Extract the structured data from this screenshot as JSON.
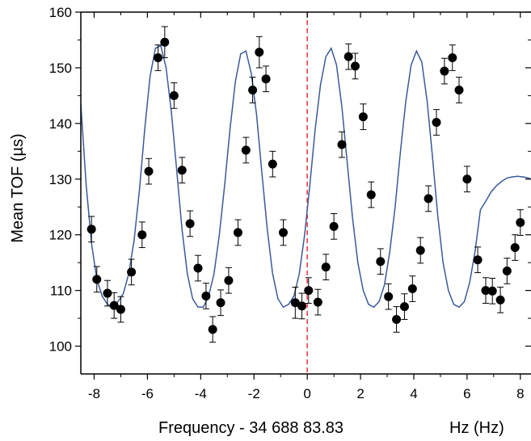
{
  "chart_data": {
    "type": "scatter",
    "title": "",
    "xlabel": "Frequency - 34 688 83.83",
    "xlabel_unit": "Hz (Hz)",
    "ylabel": "Mean TOF (µs)",
    "xlim": [
      -8.5,
      8.4
    ],
    "ylim": [
      95,
      160
    ],
    "xticks": [
      -8,
      -6,
      -4,
      -2,
      0,
      2,
      4,
      6,
      8
    ],
    "yticks": [
      100,
      110,
      120,
      130,
      140,
      150,
      160
    ],
    "xtick_labels": [
      "-8",
      "-6",
      "-4",
      "-2",
      "0",
      "2",
      "4",
      "6",
      "8"
    ],
    "ytick_labels": [
      "100",
      "110",
      "120",
      "130",
      "140",
      "150",
      "160"
    ],
    "reference_line_x": 0,
    "colors": {
      "points": "#000000",
      "fit": "#3a5a9a",
      "reference": "#e8303a"
    },
    "series": [
      {
        "kind": "points_with_error_bars",
        "x": [
          -8.1,
          -7.9,
          -7.5,
          -7.25,
          -7.0,
          -6.6,
          -6.2,
          -5.95,
          -5.6,
          -5.35,
          -5.0,
          -4.7,
          -4.4,
          -4.1,
          -3.8,
          -3.55,
          -3.25,
          -2.95,
          -2.6,
          -2.3,
          -2.05,
          -1.8,
          -1.55,
          -1.3,
          -0.9,
          -0.45,
          -0.2,
          0.05,
          0.4,
          0.7,
          1.0,
          1.3,
          1.55,
          1.8,
          2.1,
          2.4,
          2.75,
          3.05,
          3.35,
          3.65,
          3.95,
          4.25,
          4.55,
          4.85,
          5.15,
          5.45,
          5.7,
          6.0,
          6.4,
          6.7,
          6.95,
          7.25,
          7.5,
          7.8,
          8.0
        ],
        "y": [
          121,
          112,
          109.5,
          107.3,
          106.6,
          113.3,
          120,
          131.4,
          151.8,
          154.6,
          145,
          131.6,
          122,
          114,
          109,
          103,
          107.8,
          111.8,
          120.4,
          135.2,
          146,
          152.8,
          148,
          132.7,
          120.4,
          107.8,
          107.2,
          110,
          107.9,
          114.2,
          121.5,
          136.2,
          152,
          150.3,
          141.2,
          127.2,
          115.2,
          108.9,
          104.8,
          107.1,
          110.3,
          117.2,
          126.5,
          140.2,
          149.4,
          151.8,
          146,
          130,
          115.5,
          110,
          109.9,
          108.3,
          113.5,
          117.7,
          122.2
        ],
        "yerr": [
          2.3,
          2.3,
          2.3,
          2.3,
          2.3,
          2.3,
          2.3,
          2.3,
          2.3,
          2.8,
          2.3,
          2.3,
          2.3,
          2.3,
          2.3,
          2.3,
          2.3,
          2.3,
          2.3,
          2.3,
          2.3,
          2.8,
          2.3,
          2.3,
          2.3,
          2.8,
          2.3,
          2.3,
          2.3,
          2.3,
          2.3,
          2.3,
          2.3,
          2.3,
          2.3,
          2.3,
          2.3,
          2.3,
          2.3,
          2.3,
          2.3,
          2.3,
          2.3,
          2.3,
          2.3,
          2.3,
          2.3,
          2.3,
          2.3,
          2.3,
          2.3,
          2.3,
          2.3,
          2.3,
          2.3
        ]
      },
      {
        "kind": "fit_curve",
        "x": [
          -8.5,
          -8.3,
          -8.1,
          -7.9,
          -7.7,
          -7.5,
          -7.3,
          -7.1,
          -6.9,
          -6.7,
          -6.5,
          -6.3,
          -6.1,
          -5.9,
          -5.7,
          -5.5,
          -5.3,
          -5.1,
          -4.9,
          -4.7,
          -4.5,
          -4.3,
          -4.1,
          -3.9,
          -3.7,
          -3.5,
          -3.3,
          -3.1,
          -2.9,
          -2.7,
          -2.5,
          -2.3,
          -2.1,
          -1.9,
          -1.7,
          -1.5,
          -1.3,
          -1.1,
          -0.9,
          -0.7,
          -0.5,
          -0.3,
          -0.1,
          0.1,
          0.3,
          0.5,
          0.7,
          0.9,
          1.1,
          1.3,
          1.5,
          1.7,
          1.9,
          2.1,
          2.3,
          2.5,
          2.7,
          2.9,
          3.1,
          3.3,
          3.5,
          3.7,
          3.9,
          4.1,
          4.3,
          4.5,
          4.7,
          4.9,
          5.1,
          5.3,
          5.5,
          5.7,
          5.9,
          6.1,
          6.3,
          6.5,
          6.7,
          6.9,
          7.1,
          7.3,
          7.5,
          7.7,
          7.9,
          8.1,
          8.3,
          8.4
        ],
        "y": [
          143.5,
          129,
          118.5,
          112,
          109,
          107.5,
          107,
          108,
          109.5,
          113,
          119,
          128,
          139,
          148.5,
          153.5,
          154,
          150,
          142,
          131.5,
          121,
          113,
          108.5,
          107,
          107,
          109,
          113,
          120,
          129,
          139,
          147.5,
          152.5,
          153,
          149,
          141.5,
          131,
          121,
          113,
          108.5,
          107,
          107.5,
          109,
          113,
          120,
          129,
          139,
          147,
          152,
          153.5,
          150.5,
          143,
          133,
          123,
          115,
          110,
          107.5,
          107,
          108,
          111,
          117,
          125,
          135,
          144,
          150.5,
          153,
          151,
          144,
          134,
          123.5,
          115,
          110,
          107.5,
          107,
          108,
          111.5,
          117,
          124.5,
          126,
          127.7,
          128.8,
          129.6,
          130.2,
          130.4,
          130.5,
          130.4,
          130.2,
          130
        ]
      }
    ]
  }
}
